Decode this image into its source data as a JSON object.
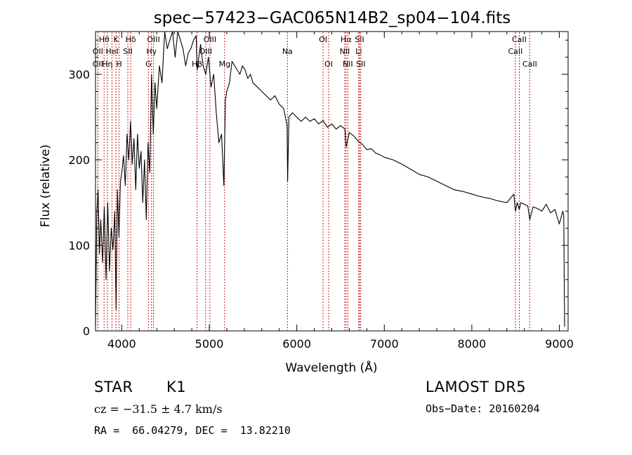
{
  "chart_data": {
    "type": "line",
    "title": "spec−57423−GAC065N14B2_sp04−104.fits",
    "xlabel": "Wavelength (Å)",
    "ylabel": "Flux (relative)",
    "xlim": [
      3700,
      9100
    ],
    "ylim": [
      0,
      350
    ],
    "xticks": [
      4000,
      5000,
      6000,
      7000,
      8000,
      9000
    ],
    "yticks": [
      0,
      100,
      200,
      300
    ],
    "grid": false,
    "line_color": "#000000",
    "marker_color": "#cc0000",
    "series": [
      {
        "x": [
          3700,
          3715,
          3730,
          3745,
          3760,
          3780,
          3800,
          3820,
          3840,
          3860,
          3880,
          3900,
          3920,
          3935,
          3950,
          3968,
          3985,
          4000,
          4020,
          4040,
          4060,
          4080,
          4100,
          4120,
          4140,
          4160,
          4180,
          4200,
          4220,
          4240,
          4260,
          4280,
          4300,
          4320,
          4340,
          4360,
          4380,
          4400,
          4430,
          4460,
          4490,
          4520,
          4550,
          4580,
          4610,
          4640,
          4670,
          4700,
          4730,
          4760,
          4790,
          4820,
          4850,
          4861,
          4880,
          4900,
          4930,
          4960,
          4990,
          5020,
          5050,
          5080,
          5110,
          5140,
          5167,
          5175,
          5184,
          5200,
          5230,
          5260,
          5290,
          5320,
          5350,
          5380,
          5410,
          5440,
          5470,
          5500,
          5550,
          5600,
          5650,
          5700,
          5750,
          5800,
          5850,
          5889,
          5895,
          5910,
          5950,
          6000,
          6050,
          6100,
          6150,
          6200,
          6250,
          6300,
          6350,
          6400,
          6450,
          6500,
          6550,
          6563,
          6600,
          6650,
          6700,
          6750,
          6800,
          6850,
          6900,
          6950,
          7000,
          7100,
          7200,
          7300,
          7400,
          7500,
          7600,
          7700,
          7800,
          7900,
          8000,
          8100,
          8200,
          8300,
          8400,
          8480,
          8498,
          8520,
          8542,
          8560,
          8600,
          8640,
          8662,
          8700,
          8750,
          8800,
          8850,
          8900,
          8950,
          9000,
          9040,
          9050,
          9060
        ],
        "y": [
          5,
          140,
          165,
          90,
          130,
          80,
          145,
          60,
          150,
          70,
          120,
          95,
          140,
          25,
          165,
          110,
          175,
          185,
          205,
          170,
          230,
          200,
          245,
          195,
          225,
          165,
          230,
          190,
          210,
          150,
          200,
          130,
          220,
          185,
          300,
          230,
          290,
          260,
          310,
          290,
          360,
          330,
          340,
          355,
          320,
          350,
          340,
          330,
          310,
          325,
          330,
          340,
          345,
          305,
          320,
          335,
          310,
          300,
          320,
          285,
          300,
          255,
          220,
          230,
          170,
          215,
          270,
          280,
          290,
          315,
          310,
          305,
          300,
          310,
          305,
          295,
          300,
          290,
          285,
          280,
          275,
          270,
          275,
          265,
          260,
          240,
          175,
          250,
          255,
          250,
          245,
          250,
          245,
          248,
          242,
          246,
          238,
          242,
          236,
          240,
          236,
          215,
          232,
          228,
          222,
          218,
          212,
          213,
          208,
          206,
          203,
          200,
          195,
          189,
          183,
          180,
          175,
          170,
          165,
          163,
          160,
          157,
          155,
          152,
          150,
          160,
          140,
          150,
          142,
          150,
          148,
          146,
          130,
          145,
          143,
          140,
          148,
          138,
          142,
          125,
          140,
          135,
          5
        ]
      }
    ],
    "line_markers": [
      {
        "label": "Hθ",
        "x": 3798,
        "row": 1
      },
      {
        "label": "OII",
        "x": 3727,
        "row": 2
      },
      {
        "label": "OII",
        "x": 3727,
        "row": 3
      },
      {
        "label": "K",
        "x": 3934,
        "row": 1
      },
      {
        "label": "HeI",
        "x": 3889,
        "row": 2
      },
      {
        "label": "Hη",
        "x": 3835,
        "row": 3
      },
      {
        "label": "H",
        "x": 3969,
        "row": 3
      },
      {
        "label": "SII",
        "x": 4069,
        "row": 2
      },
      {
        "label": "Hδ",
        "x": 4102,
        "row": 1
      },
      {
        "label": "OIII",
        "x": 4363,
        "row": 1
      },
      {
        "label": "Hγ",
        "x": 4340,
        "row": 2
      },
      {
        "label": "G",
        "x": 4305,
        "row": 3
      },
      {
        "label": "OIII",
        "x": 5007,
        "row": 1
      },
      {
        "label": "OIII",
        "x": 4959,
        "row": 2
      },
      {
        "label": "Hβ",
        "x": 4861,
        "row": 3
      },
      {
        "label": "Mg",
        "x": 5175,
        "row": 3
      },
      {
        "label": "Na",
        "x": 5893,
        "row": 2
      },
      {
        "label": "OI",
        "x": 6300,
        "row": 1
      },
      {
        "label": "OI",
        "x": 6364,
        "row": 3
      },
      {
        "label": "Hα",
        "x": 6563,
        "row": 1
      },
      {
        "label": "NII",
        "x": 6548,
        "row": 2
      },
      {
        "label": "NII",
        "x": 6583,
        "row": 3
      },
      {
        "label": "SII",
        "x": 6717,
        "row": 1
      },
      {
        "label": "Li",
        "x": 6708,
        "row": 2
      },
      {
        "label": "SII",
        "x": 6731,
        "row": 3
      },
      {
        "label": "CaII",
        "x": 8542,
        "row": 1
      },
      {
        "label": "CaII",
        "x": 8498,
        "row": 2
      },
      {
        "label": "CaII",
        "x": 8662,
        "row": 3
      }
    ]
  },
  "info": {
    "class": "STAR",
    "subclass": "K1",
    "survey": "LAMOST DR5",
    "velocity": "cz = −31.5 ± 4.7 km/s",
    "obs_date": "Obs−Date: 20160204",
    "coords": "RA =  66.04279, DEC =  13.82210"
  }
}
